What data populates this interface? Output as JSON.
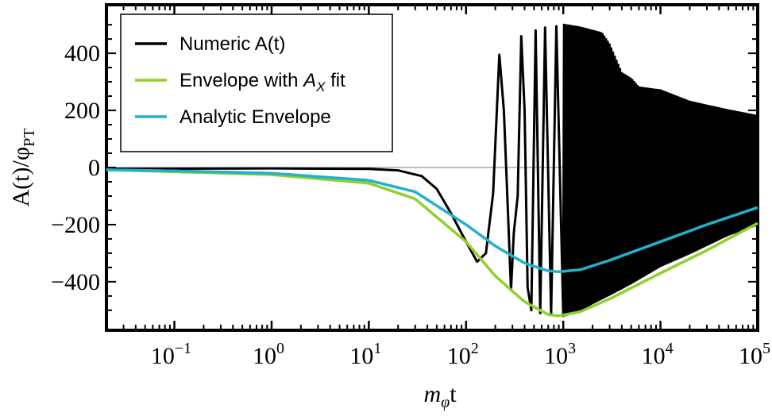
{
  "chart_data": {
    "type": "line",
    "title": "",
    "xlabel": {
      "main": "m",
      "sub": "φ",
      "rest": "t"
    },
    "ylabel": {
      "main": "A(t)/φ",
      "sub": "PT"
    },
    "x_scale": "log",
    "xlim": [
      0.02,
      100000
    ],
    "ylim": [
      -570,
      570
    ],
    "x_ticks": [
      {
        "value": 0.1,
        "base": "10",
        "exp": "−1"
      },
      {
        "value": 1,
        "base": "10",
        "exp": "0"
      },
      {
        "value": 10,
        "base": "10",
        "exp": "1"
      },
      {
        "value": 100,
        "base": "10",
        "exp": "2"
      },
      {
        "value": 1000,
        "base": "10",
        "exp": "3"
      },
      {
        "value": 10000,
        "base": "10",
        "exp": "4"
      },
      {
        "value": 100000,
        "base": "10",
        "exp": "5"
      }
    ],
    "y_ticks": [
      {
        "value": 400,
        "label": "400"
      },
      {
        "value": 200,
        "label": "200"
      },
      {
        "value": 0,
        "label": "0"
      },
      {
        "value": -200,
        "label": "−200"
      },
      {
        "value": -400,
        "label": "−400"
      }
    ],
    "legend": {
      "position": "top-left",
      "entries": [
        {
          "label": "Numeric A(t)",
          "color": "#000000"
        },
        {
          "label_prefix": "Envelope with ",
          "label_math": "A",
          "label_sub": "X",
          "label_suffix": " fit",
          "color": "#8fd12a"
        },
        {
          "label": "Analytic Envelope",
          "color": "#22b0cc"
        }
      ]
    },
    "series": [
      {
        "name": "Numeric A(t)",
        "color": "#000000",
        "points": [
          [
            0.02,
            -5
          ],
          [
            1,
            -3
          ],
          [
            10,
            -5
          ],
          [
            20,
            -10
          ],
          [
            35,
            -30
          ],
          [
            50,
            -75
          ],
          [
            70,
            -160
          ],
          [
            100,
            -260
          ],
          [
            130,
            -330
          ],
          [
            160,
            -300
          ],
          [
            190,
            -90
          ],
          [
            220,
            395
          ],
          [
            245,
            200
          ],
          [
            270,
            -160
          ],
          [
            290,
            -430
          ],
          [
            310,
            -230
          ],
          [
            340,
            -100
          ],
          [
            370,
            460
          ],
          [
            400,
            200
          ],
          [
            430,
            -420
          ],
          [
            470,
            -500
          ],
          [
            520,
            480
          ],
          [
            580,
            -510
          ],
          [
            650,
            490
          ],
          [
            750,
            -515
          ],
          [
            850,
            495
          ],
          [
            1000,
            -520
          ]
        ],
        "oscillation": {
          "from": 1000,
          "to": 100000,
          "upper": [
            [
              1000,
              500
            ],
            [
              1500,
              490
            ],
            [
              2500,
              470
            ],
            [
              3000,
              430
            ],
            [
              4000,
              330
            ],
            [
              5000,
              310
            ],
            [
              6000,
              280
            ],
            [
              10000,
              270
            ],
            [
              20000,
              230
            ],
            [
              50000,
              200
            ],
            [
              100000,
              180
            ]
          ],
          "lower": [
            [
              1000,
              -520
            ],
            [
              1500,
              -500
            ],
            [
              2000,
              -475
            ],
            [
              3000,
              -445
            ],
            [
              5000,
              -405
            ],
            [
              10000,
              -345
            ],
            [
              20000,
              -300
            ],
            [
              50000,
              -235
            ],
            [
              100000,
              -200
            ]
          ]
        }
      },
      {
        "name": "Envelope with A_X fit",
        "color": "#8fd12a",
        "points": [
          [
            0.02,
            -8
          ],
          [
            0.1,
            -15
          ],
          [
            1,
            -25
          ],
          [
            10,
            -55
          ],
          [
            30,
            -110
          ],
          [
            100,
            -260
          ],
          [
            200,
            -380
          ],
          [
            400,
            -470
          ],
          [
            700,
            -515
          ],
          [
            900,
            -520
          ],
          [
            1500,
            -505
          ],
          [
            3000,
            -460
          ],
          [
            10000,
            -370
          ],
          [
            30000,
            -290
          ],
          [
            100000,
            -195
          ]
        ]
      },
      {
        "name": "Analytic Envelope",
        "color": "#22b0cc",
        "points": [
          [
            0.02,
            -8
          ],
          [
            0.1,
            -12
          ],
          [
            1,
            -20
          ],
          [
            10,
            -45
          ],
          [
            30,
            -85
          ],
          [
            100,
            -200
          ],
          [
            200,
            -275
          ],
          [
            400,
            -335
          ],
          [
            700,
            -362
          ],
          [
            900,
            -365
          ],
          [
            1500,
            -358
          ],
          [
            3000,
            -325
          ],
          [
            10000,
            -260
          ],
          [
            30000,
            -200
          ],
          [
            100000,
            -140
          ]
        ]
      }
    ]
  }
}
